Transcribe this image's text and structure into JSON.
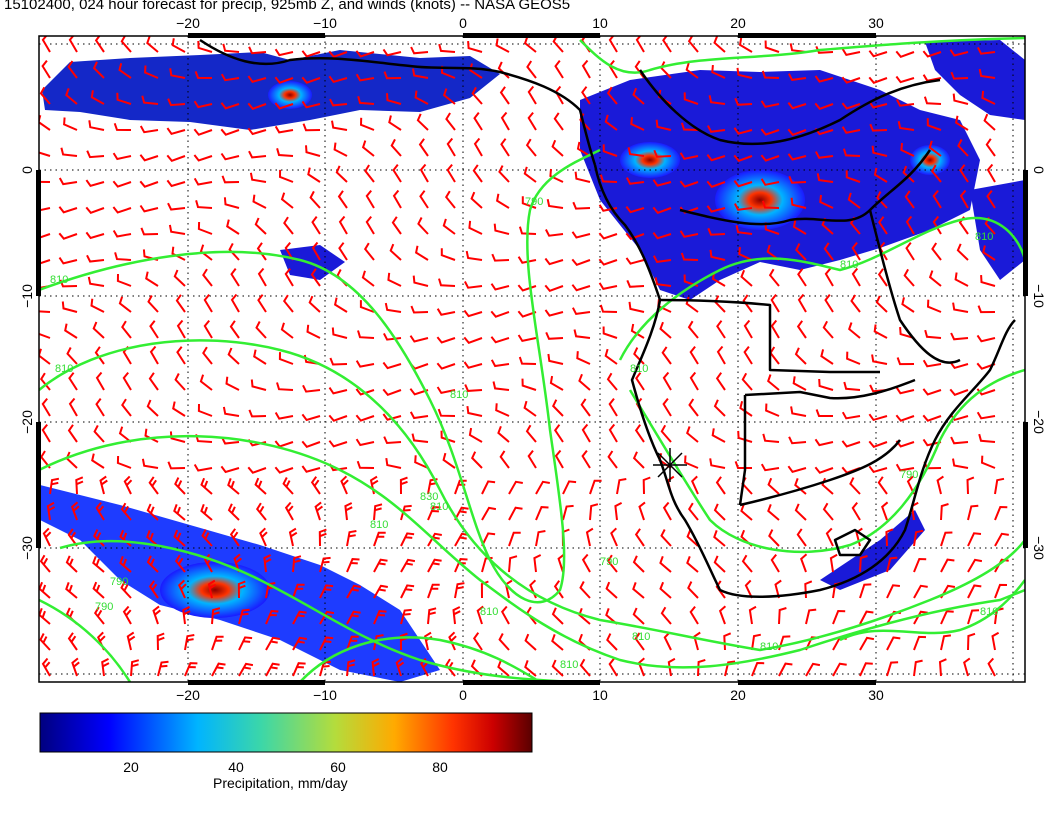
{
  "title": "15102400, 024 hour forecast for precip, 925mb Z, and winds (knots) -- NASA GEOS5",
  "map": {
    "lon_range": [
      -30,
      42
    ],
    "lat_range": [
      -40,
      11
    ],
    "x_tick_labels": [
      "−20",
      "−10",
      "0",
      "10",
      "20",
      "30"
    ],
    "y_tick_labels": [
      "0",
      "−10",
      "−20",
      "−30"
    ],
    "grid": "dotted",
    "contour_labels": [
      "810",
      "810",
      "790",
      "810",
      "810",
      "790",
      "810",
      "830",
      "810",
      "810",
      "810",
      "790",
      "790",
      "810",
      "810",
      "790",
      "810",
      "810",
      "810"
    ],
    "colors": {
      "contours": "#33ee33",
      "wind_barbs": "#ff0000",
      "coastlines": "#000000",
      "precip_scale": [
        "#00007f",
        "#0000ff",
        "#00b4ff",
        "#3cd7a8",
        "#b4dc3c",
        "#ffaa00",
        "#ff3300",
        "#cc0000",
        "#5a0000"
      ]
    },
    "marker": "station-star"
  },
  "colorbar": {
    "range": [
      0,
      100
    ],
    "tick_labels": [
      "20",
      "40",
      "60",
      "80"
    ],
    "label": "Precipitation, mm/day"
  }
}
